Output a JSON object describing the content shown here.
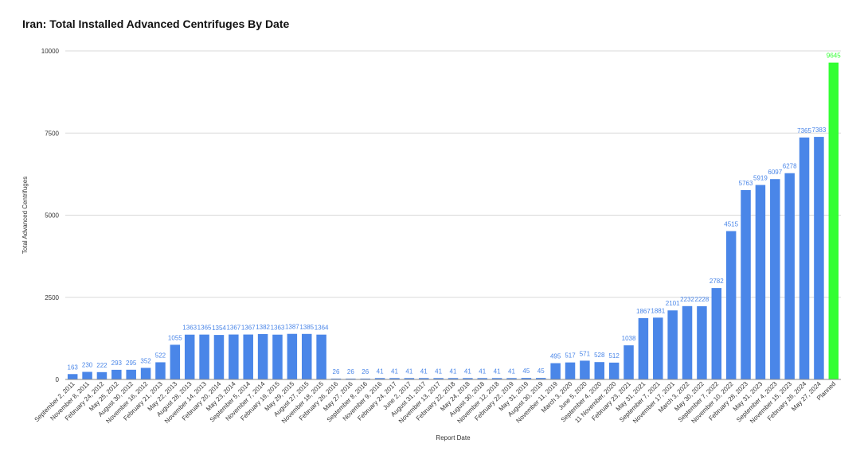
{
  "chart_data": {
    "type": "bar",
    "title": "Iran: Total Installed Advanced Centrifuges By Date",
    "xlabel": "Report Date",
    "ylabel": "Total Advanced Centrifuges",
    "ylim": [
      0,
      10000
    ],
    "yticks": [
      "0",
      "2500",
      "5000",
      "7500",
      "10000"
    ],
    "grid": true,
    "legend": "none",
    "colors": {
      "bar": "#4a86e8",
      "planned": "#33ff33",
      "label": "#4a86e8",
      "planned_label": "#33ff33",
      "grid": "#d9d9d9"
    },
    "categories": [
      "September 2, 2011",
      "November 8, 2011",
      "February 24, 2012",
      "May 25, 2012",
      "August 30, 2012",
      "November 16, 2012",
      "February 21, 2013",
      "May 22, 2013",
      "August 28, 2013",
      "November 14, 2013",
      "February 20, 2014",
      "May 23, 2014",
      "September 5, 2014",
      "November 7, 2014",
      "February 19, 2015",
      "May 29, 2015",
      "August 27, 2015",
      "November 18, 2015",
      "February 26, 2016",
      "May 27, 2016",
      "September 8, 2016",
      "November 9, 2016",
      "February 24, 2017",
      "June 2, 2017",
      "August 31, 2017",
      "November 13, 2017",
      "February 22, 2018",
      "May 24, 2018",
      "August 30, 2018",
      "November 12, 2018",
      "February 22, 2019",
      "May 31, 2019",
      "August 30, 2019",
      "November 11, 2019",
      "March 3, 2020",
      "June 5, 2020",
      "September 4, 2020",
      "11 November, 2020",
      "February 23, 2021",
      "May 31, 2021",
      "September 7, 2021",
      "November 17, 2021",
      "March 3, 2022",
      "May 30, 2022",
      "September 7, 2022",
      "November 10, 2022",
      "February 28, 2023",
      "May 31, 2023",
      "September 4, 2023",
      "November 15, 2023",
      "February 26, 2024",
      "May 27, 2024",
      "Planned"
    ],
    "values": [
      163,
      230,
      222,
      293,
      295,
      352,
      522,
      1055,
      1363,
      1365,
      1354,
      1367,
      1367,
      1382,
      1363,
      1387,
      1385,
      1364,
      26,
      26,
      26,
      41,
      41,
      41,
      41,
      41,
      41,
      41,
      41,
      41,
      41,
      45,
      45,
      495,
      517,
      571,
      528,
      512,
      1038,
      1867,
      1881,
      2101,
      2232,
      2228,
      2782,
      4515,
      5763,
      5919,
      6097,
      6278,
      7365,
      7383,
      9645
    ],
    "highlight_category": "Planned"
  }
}
